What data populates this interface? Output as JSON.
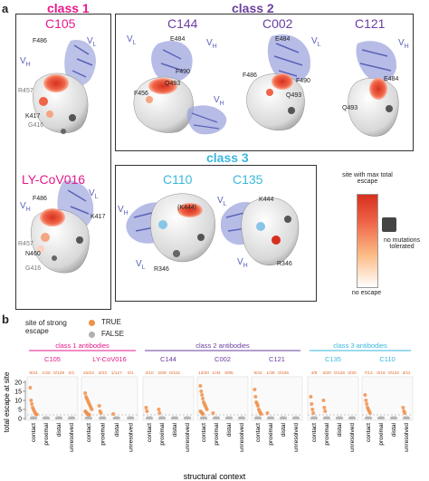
{
  "panel_a": {
    "letter": "a",
    "class1_title": "class 1",
    "class2_title": "class 2",
    "class3_title": "class 3",
    "colors": {
      "class1": "#e6198c",
      "class2": "#6b3fa0",
      "class3": "#3ab7dd",
      "chain": "#5a63b8"
    },
    "structures": {
      "c105": {
        "name": "C105",
        "vl": "V",
        "vl_sub": "L",
        "vh": "V",
        "vh_sub": "H",
        "labels": [
          "F486",
          "R457",
          "K417",
          "G416"
        ]
      },
      "ly": {
        "name": "LY-CoV016",
        "vl": "V",
        "vl_sub": "L",
        "vh": "V",
        "vh_sub": "H",
        "labels": [
          "F486",
          "K417",
          "R457",
          "N460",
          "G416"
        ]
      },
      "c144": {
        "name": "C144",
        "vl": "V",
        "vl_sub": "L",
        "vh": "V",
        "vh_sub": "H",
        "labels": [
          "E484",
          "F490",
          "Q493",
          "F456"
        ],
        "vh2": "V",
        "vh2_sub": "H"
      },
      "c002": {
        "name": "C002",
        "vl": "V",
        "vl_sub": "L",
        "labels": [
          "E484",
          "F486",
          "F490",
          "Q493"
        ]
      },
      "c121": {
        "name": "C121",
        "vh": "V",
        "vh_sub": "H",
        "labels": [
          "E484",
          "Q493"
        ]
      },
      "c110": {
        "name": "C110",
        "vl": "V",
        "vl_sub": "L",
        "vh": "V",
        "vh_sub": "H",
        "labels": [
          "(K444)",
          "R346"
        ]
      },
      "c135": {
        "name": "C135",
        "vl": "V",
        "vl_sub": "L",
        "vh": "V",
        "vh_sub": "H",
        "labels": [
          "K444",
          "R346"
        ]
      }
    },
    "legend": {
      "max": "site with max total escape",
      "none": "no escape",
      "grey": "no mutations tolerated"
    }
  },
  "panel_b": {
    "letter": "b",
    "legend_title": "site of strong escape",
    "legend_true": "TRUE",
    "legend_false": "FALSE",
    "colors": {
      "true": "#f0914c",
      "false": "#b0b0b0"
    }
  },
  "chart_data": {
    "type": "scatter",
    "ylabel": "total escape at site",
    "xlabel": "structural context",
    "ylim": [
      0,
      20
    ],
    "yticks": [
      0,
      5,
      10,
      15,
      20
    ],
    "threshold_dashed": 2,
    "x_categories": [
      "contact",
      "proximal",
      "distal",
      "unresolved"
    ],
    "groups": [
      {
        "title": "class 1 antibodies",
        "color": "#e6198c",
        "antibodies": [
          {
            "name": "C105",
            "fractions": [
              "9/24",
              "1/20",
              "0/129",
              "0/1"
            ],
            "contact_true": [
              17,
              10,
              8,
              6,
              5,
              4,
              3,
              2.5,
              2.2
            ]
          },
          {
            "name": "LY-CoV016",
            "fractions": [
              "15/23",
              "3/23",
              "1/127",
              "0/1"
            ],
            "contact_true": [
              14,
              12,
              11,
              10,
              9,
              8,
              7,
              6,
              5,
              4,
              3.5,
              3,
              2.5,
              2.2,
              2.1
            ],
            "proximal_true": [
              7,
              4,
              3
            ],
            "distal_true": [
              2.5
            ]
          }
        ]
      },
      {
        "title": "class 2 antibodies",
        "color": "#6b3fa0",
        "antibodies": [
          {
            "name": "C144",
            "fractions": [
              "2/10",
              "2/09",
              "0/115"
            ],
            "contact_true": [
              6,
              4
            ],
            "proximal_true": [
              5,
              3
            ]
          },
          {
            "name": "C002",
            "fractions": [
              "13/20",
              "1/44",
              "0/95"
            ],
            "contact_true": [
              18,
              15,
              13,
              11,
              9,
              8,
              7,
              6,
              5,
              4,
              3.5,
              3,
              2.5
            ],
            "proximal_true": [
              3
            ]
          },
          {
            "name": "C121",
            "fractions": [
              "9/32",
              "1/36",
              "0/106"
            ],
            "contact_true": [
              16,
              12,
              9,
              8,
              7,
              5,
              4,
              3,
              2.5
            ],
            "proximal_true": [
              3
            ]
          }
        ]
      },
      {
        "title": "class 3 antibodies",
        "color": "#3ab7dd",
        "antibodies": [
          {
            "name": "C135",
            "fractions": [
              "4/8",
              "3/20",
              "0/126",
              "0/20"
            ],
            "contact_true": [
              12,
              8,
              5,
              3
            ],
            "proximal_true": [
              10,
              6,
              4
            ]
          },
          {
            "name": "C110",
            "fractions": [
              "7/13",
              "0/18",
              "0/132",
              "3/11"
            ],
            "contact_true": [
              13,
              10,
              8,
              6,
              5,
              4,
              3
            ],
            "unresolved_true": [
              6,
              4,
              3
            ]
          }
        ]
      }
    ]
  }
}
